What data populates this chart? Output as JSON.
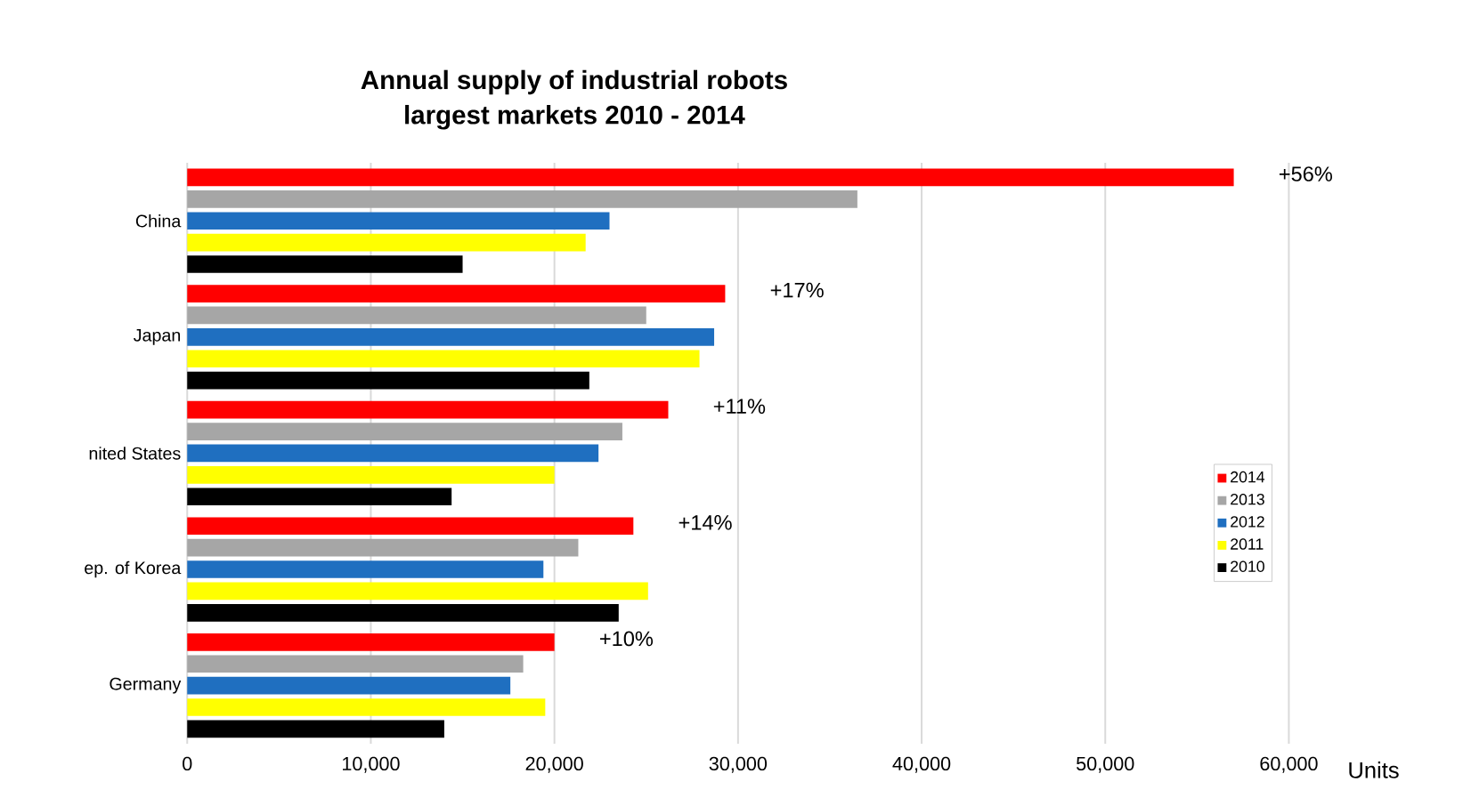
{
  "chart_data": {
    "type": "bar",
    "orientation": "horizontal",
    "title": "Annual supply of industrial robots",
    "subtitle": "largest markets 2010 - 2014",
    "xlabel": "Units",
    "categories": [
      "China",
      "Japan",
      "nited States",
      "ep. of Korea",
      "Germany"
    ],
    "series": [
      {
        "name": "2014",
        "color": "#ff0000",
        "values": [
          57000,
          29300,
          26200,
          24300,
          20000
        ]
      },
      {
        "name": "2013",
        "color": "#a6a6a6",
        "values": [
          36500,
          25000,
          23700,
          21300,
          18300
        ]
      },
      {
        "name": "2012",
        "color": "#1f6fc0",
        "values": [
          23000,
          28700,
          22400,
          19400,
          17600
        ]
      },
      {
        "name": "2011",
        "color": "#ffff00",
        "values": [
          21700,
          27900,
          20000,
          25100,
          19500
        ]
      },
      {
        "name": "2010",
        "color": "#000000",
        "values": [
          15000,
          21900,
          14400,
          23500,
          14000
        ]
      }
    ],
    "xlim": [
      0,
      60000
    ],
    "xticks": [
      {
        "value": 0,
        "label": "0"
      },
      {
        "value": 10000,
        "label": "10,000"
      },
      {
        "value": 20000,
        "label": "20,000"
      },
      {
        "value": 30000,
        "label": "30,000"
      },
      {
        "value": 40000,
        "label": "40,000"
      },
      {
        "value": 50000,
        "label": "50,000"
      },
      {
        "value": 60000,
        "label": "60,000"
      }
    ],
    "grid": "x",
    "legend": "right",
    "annotations": [
      "+56%",
      "+17%",
      "+11%",
      "+14%",
      "+10%"
    ]
  }
}
